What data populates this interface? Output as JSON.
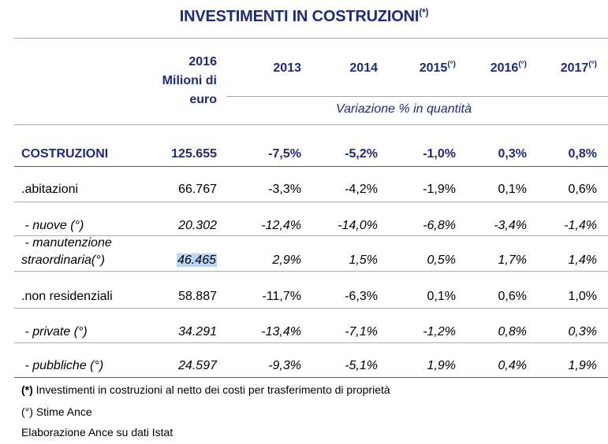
{
  "title": {
    "text": "INVESTIMENTI IN COSTRUZIONI",
    "mark": "(*)"
  },
  "header": {
    "value_col": [
      "2016",
      "Milioni di",
      "euro"
    ],
    "years": [
      {
        "year": "2013",
        "mark": ""
      },
      {
        "year": "2014",
        "mark": ""
      },
      {
        "year": "2015",
        "mark": "(°)"
      },
      {
        "year": "2016",
        "mark": "(°)"
      },
      {
        "year": "2017",
        "mark": "(°)"
      }
    ],
    "subheader": "Variazione % in quantità"
  },
  "rows": [
    {
      "label": "COSTRUZIONI",
      "value": "125.655",
      "changes": [
        "-7,5%",
        "-5,2%",
        "-1,0%",
        "0,3%",
        "0,8%"
      ]
    },
    {
      "label": ".abitazioni",
      "value": "66.767",
      "changes": [
        "-3,3%",
        "-4,2%",
        "-1,9%",
        "0,1%",
        "0,6%"
      ]
    },
    {
      "label": " - nuove (°)",
      "value": "20.302",
      "changes": [
        "-12,4%",
        "-14,0%",
        "-6,8%",
        "-3,4%",
        "-1,4%"
      ]
    },
    {
      "label_line1": " - manutenzione",
      "label_line2": "straordinaria(°)",
      "value": "46.465",
      "changes": [
        "2,9%",
        "1,5%",
        "0,5%",
        "1,7%",
        "1,4%"
      ]
    },
    {
      "label": ".non residenziali",
      "value": "58.887",
      "changes": [
        "-11,7%",
        "-6,3%",
        "0,1%",
        "0,6%",
        "1,0%"
      ]
    },
    {
      "label": " - private (°)",
      "value": "34.291",
      "changes": [
        "-13,4%",
        "-7,1%",
        "-1,2%",
        "0,8%",
        "0,3%"
      ]
    },
    {
      "label": " - pubbliche (°)",
      "value": "24.597",
      "changes": [
        "-9,3%",
        "-5,1%",
        "1,9%",
        "0,4%",
        "1,9%"
      ]
    }
  ],
  "notes": [
    {
      "mark": "(*)",
      "text": " Investimenti in costruzioni al netto dei costi per trasferimento di proprietà"
    },
    {
      "mark": "(°)",
      "text": " Stime Ance"
    },
    {
      "mark": "",
      "text": "Elaborazione Ance su dati Istat"
    }
  ]
}
